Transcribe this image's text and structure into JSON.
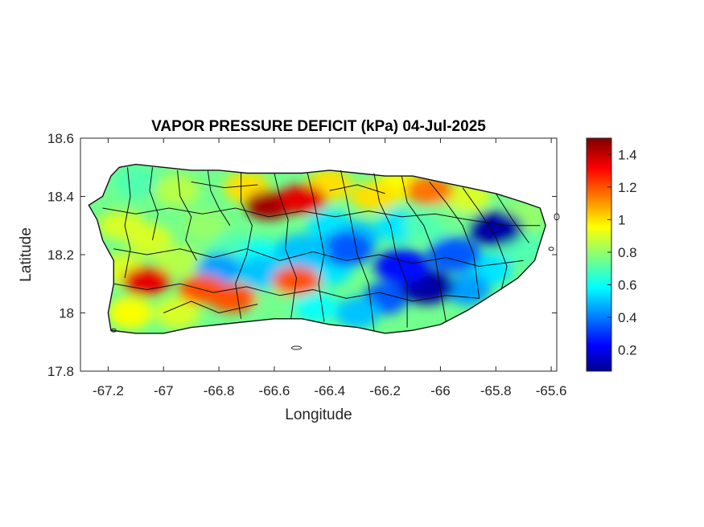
{
  "chart_data": {
    "type": "heatmap",
    "title": "VAPOR PRESSURE DEFICIT (kPa) 04-Jul-2025",
    "xlabel": "Longitude",
    "ylabel": "Latitude",
    "xlim": [
      -67.3,
      -65.58
    ],
    "ylim": [
      17.8,
      18.6
    ],
    "x_ticks": [
      -67.2,
      -67,
      -66.8,
      -66.6,
      -66.4,
      -66.2,
      -66,
      -65.8,
      -65.6
    ],
    "y_ticks": [
      17.8,
      18,
      18.2,
      18.4,
      18.6
    ],
    "colorbar": {
      "range": [
        0.07,
        1.5
      ],
      "ticks": [
        0.2,
        0.4,
        0.6,
        0.8,
        1,
        1.2,
        1.4
      ],
      "colormap": "jet"
    },
    "hotspots": [
      {
        "lon": -66.62,
        "lat": 18.37,
        "value": 1.45
      },
      {
        "lon": -66.5,
        "lat": 18.39,
        "value": 1.35
      },
      {
        "lon": -67.06,
        "lat": 18.11,
        "value": 1.35
      },
      {
        "lon": -66.86,
        "lat": 18.08,
        "value": 1.2
      },
      {
        "lon": -66.75,
        "lat": 18.05,
        "value": 1.2
      },
      {
        "lon": -66.52,
        "lat": 18.11,
        "value": 1.2
      },
      {
        "lon": -66.04,
        "lat": 18.42,
        "value": 1.15
      },
      {
        "lon": -66.24,
        "lat": 18.4,
        "value": 1.0
      },
      {
        "lon": -67.15,
        "lat": 18.3,
        "value": 0.9
      }
    ],
    "lowspots": [
      {
        "lon": -65.8,
        "lat": 18.29,
        "value": 0.1
      },
      {
        "lon": -66.05,
        "lat": 18.09,
        "value": 0.1
      },
      {
        "lon": -66.14,
        "lat": 18.16,
        "value": 0.25
      },
      {
        "lon": -66.34,
        "lat": 18.22,
        "value": 0.35
      },
      {
        "lon": -66.5,
        "lat": 18.21,
        "value": 0.5
      },
      {
        "lon": -65.95,
        "lat": 18.2,
        "value": 0.35
      }
    ]
  }
}
